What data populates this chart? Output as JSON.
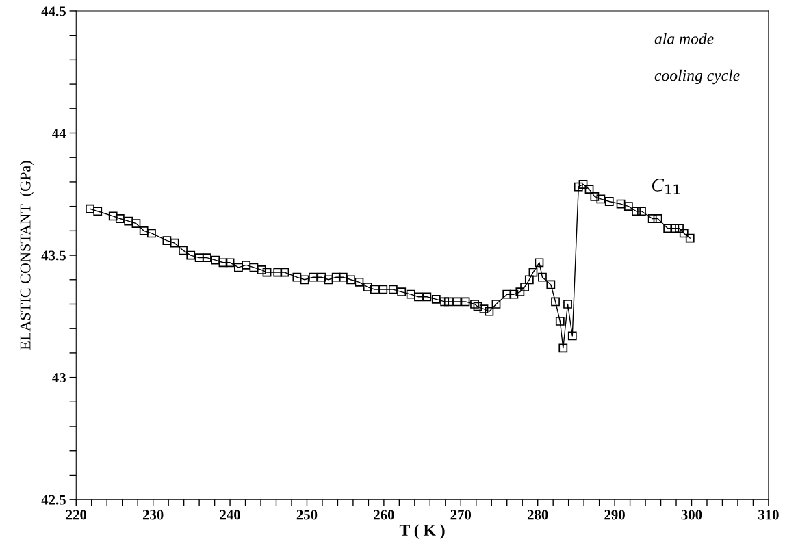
{
  "chart_data": {
    "type": "line",
    "xlabel": "T ( K )",
    "ylabel": "ELASTIC CONSTANT  (GPa)",
    "annotations": [
      "ala mode",
      "cooling cycle"
    ],
    "xlim": [
      220,
      310
    ],
    "ylim": [
      42.5,
      44.5
    ],
    "xticks": [
      220,
      {
        "value": 222,
        "label": null
      },
      {
        "value": 224,
        "label": null
      },
      {
        "value": 226,
        "label": null
      },
      {
        "value": 228,
        "label": null
      },
      230,
      {
        "value": 232,
        "label": null
      },
      {
        "value": 234,
        "label": null
      },
      {
        "value": 236,
        "label": null
      },
      {
        "value": 238,
        "label": null
      },
      240,
      {
        "value": 242,
        "label": null
      },
      {
        "value": 244,
        "label": null
      },
      {
        "value": 246,
        "label": null
      },
      {
        "value": 248,
        "label": null
      },
      250,
      {
        "value": 252,
        "label": null
      },
      {
        "value": 254,
        "label": null
      },
      {
        "value": 256,
        "label": null
      },
      {
        "value": 258,
        "label": null
      },
      260,
      {
        "value": 262,
        "label": null
      },
      {
        "value": 264,
        "label": null
      },
      {
        "value": 266,
        "label": null
      },
      {
        "value": 268,
        "label": null
      },
      270,
      {
        "value": 272,
        "label": null
      },
      {
        "value": 274,
        "label": null
      },
      {
        "value": 276,
        "label": null
      },
      {
        "value": 278,
        "label": null
      },
      280,
      {
        "value": 282,
        "label": null
      },
      {
        "value": 284,
        "label": null
      },
      {
        "value": 286,
        "label": null
      },
      {
        "value": 288,
        "label": null
      },
      290,
      {
        "value": 292,
        "label": null
      },
      {
        "value": 294,
        "label": null
      },
      {
        "value": 296,
        "label": null
      },
      {
        "value": 298,
        "label": null
      },
      300,
      {
        "value": 302,
        "label": null
      },
      {
        "value": 304,
        "label": null
      },
      {
        "value": 306,
        "label": null
      },
      {
        "value": 308,
        "label": null
      },
      310
    ],
    "yticks": [
      42.5,
      {
        "value": 42.6,
        "label": null
      },
      {
        "value": 42.7,
        "label": null
      },
      {
        "value": 42.8,
        "label": null
      },
      {
        "value": 42.9,
        "label": null
      },
      43,
      {
        "value": 43.1,
        "label": null
      },
      {
        "value": 43.2,
        "label": null
      },
      {
        "value": 43.3,
        "label": null
      },
      {
        "value": 43.4,
        "label": null
      },
      43.5,
      {
        "value": 43.6,
        "label": null
      },
      {
        "value": 43.7,
        "label": null
      },
      {
        "value": 43.8,
        "label": null
      },
      {
        "value": 43.9,
        "label": null
      },
      44,
      {
        "value": 44.1,
        "label": null
      },
      {
        "value": 44.2,
        "label": null
      },
      {
        "value": 44.3,
        "label": null
      },
      {
        "value": 44.4,
        "label": null
      },
      44.5
    ],
    "grid": false,
    "legend": false,
    "marker": "square",
    "line_style": "solid",
    "series": [
      {
        "name": "C$_{11}$",
        "color": "#000000",
        "x": [
          221.8,
          222.8,
          224.8,
          225.7,
          226.8,
          227.8,
          228.8,
          229.8,
          231.8,
          232.8,
          233.9,
          234.9,
          236.0,
          237.0,
          238.1,
          239.1,
          240.0,
          241.1,
          242.1,
          243.1,
          244.1,
          244.8,
          246.2,
          247.1,
          248.7,
          249.7,
          250.8,
          251.9,
          252.8,
          253.8,
          254.7,
          255.7,
          256.8,
          257.9,
          258.8,
          259.9,
          261.2,
          262.3,
          263.5,
          264.5,
          265.6,
          266.8,
          267.9,
          268.4,
          269.5,
          270.6,
          271.8,
          272.2,
          273.0,
          273.7,
          274.6,
          276.0,
          276.9,
          277.7,
          278.3,
          278.9,
          279.4,
          280.2,
          280.6,
          281.7,
          282.3,
          282.9,
          283.3,
          283.9,
          284.5,
          285.3,
          285.9,
          286.7,
          287.4,
          288.2,
          289.3,
          290.8,
          291.8,
          292.8,
          293.5,
          294.9,
          295.6,
          296.9,
          297.8,
          298.4,
          299.0,
          299.8
        ],
        "values": [
          43.69,
          43.68,
          43.66,
          43.65,
          43.64,
          43.63,
          43.6,
          43.59,
          43.56,
          43.55,
          43.52,
          43.5,
          43.49,
          43.49,
          43.48,
          43.47,
          43.47,
          43.45,
          43.46,
          43.45,
          43.44,
          43.43,
          43.43,
          43.43,
          43.41,
          43.4,
          43.41,
          43.41,
          43.4,
          43.41,
          43.41,
          43.4,
          43.39,
          43.37,
          43.36,
          43.36,
          43.36,
          43.35,
          43.34,
          43.33,
          43.33,
          43.32,
          43.31,
          43.31,
          43.31,
          43.31,
          43.3,
          43.29,
          43.28,
          43.27,
          43.3,
          43.34,
          43.34,
          43.35,
          43.37,
          43.4,
          43.43,
          43.47,
          43.41,
          43.38,
          43.31,
          43.23,
          43.12,
          43.3,
          43.17,
          43.78,
          43.79,
          43.77,
          43.74,
          43.73,
          43.72,
          43.71,
          43.7,
          43.68,
          43.68,
          43.65,
          43.65,
          43.61,
          43.61,
          43.61,
          43.59,
          43.57
        ]
      }
    ]
  }
}
